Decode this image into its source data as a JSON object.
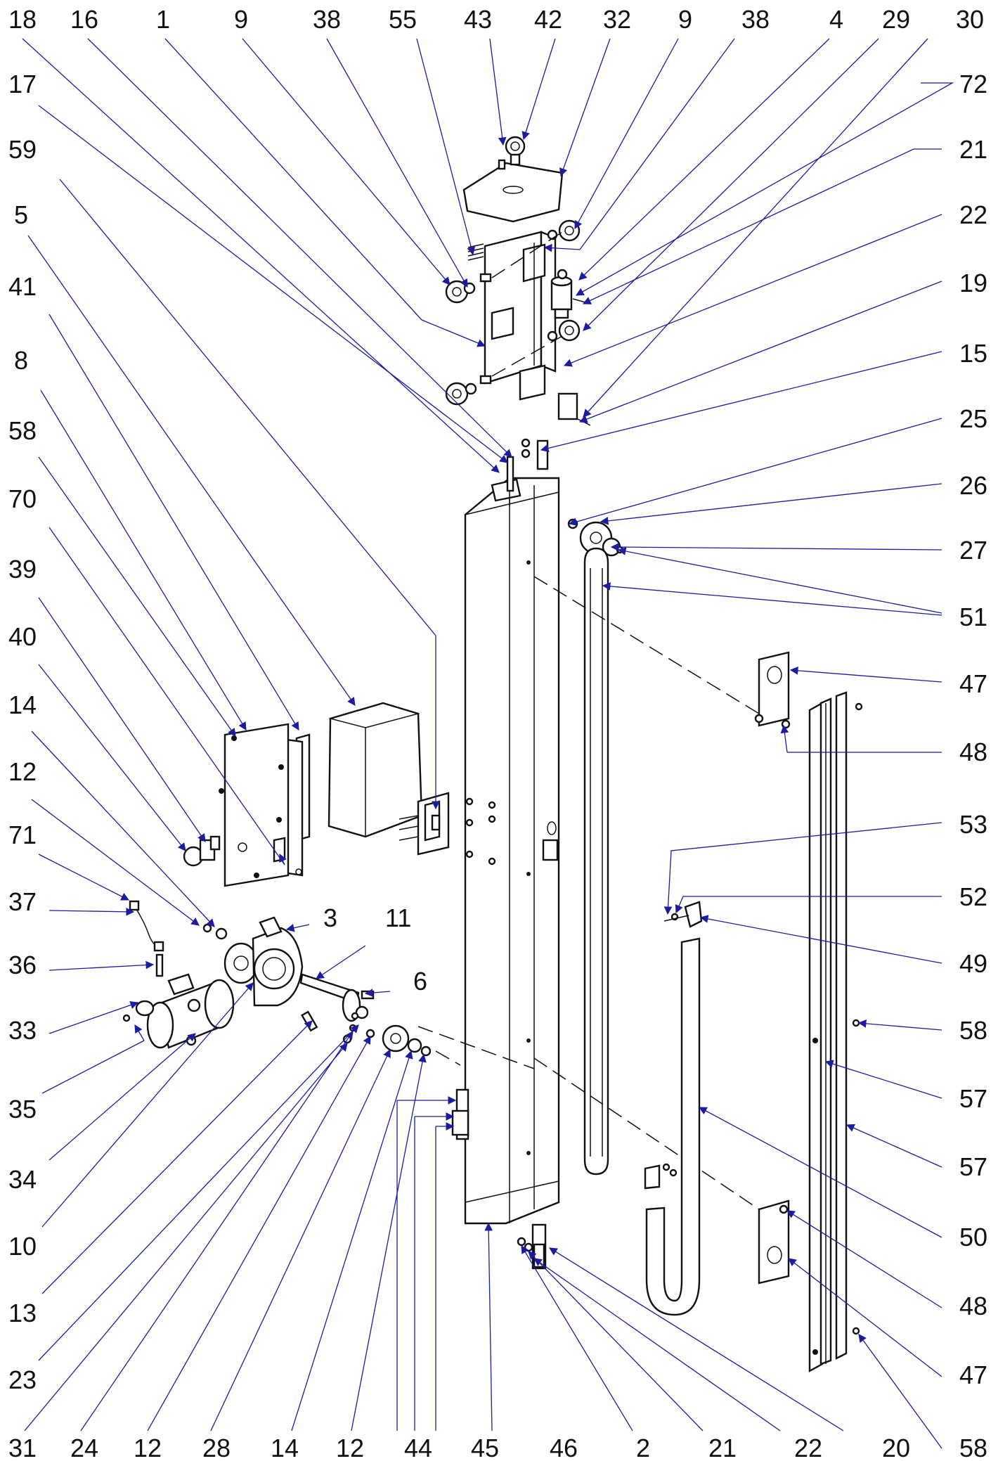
{
  "colors": {
    "leader": "#1c1c9e",
    "ink": "#111111",
    "background": "#ffffff"
  },
  "callouts": {
    "top": [
      "18",
      "16",
      "1",
      "9",
      "38",
      "55",
      "43",
      "42",
      "32",
      "9",
      "38",
      "4",
      "29",
      "30"
    ],
    "left": [
      "17",
      "59",
      "5",
      "41",
      "8",
      "58",
      "70",
      "39",
      "40",
      "14",
      "12",
      "71",
      "37",
      "36",
      "33",
      "35",
      "34",
      "10",
      "13",
      "23"
    ],
    "right": [
      "72",
      "21",
      "22",
      "19",
      "15",
      "25",
      "26",
      "27",
      "51",
      "47",
      "48",
      "53",
      "52",
      "49",
      "58",
      "57",
      "57",
      "50",
      "48",
      "47",
      "58"
    ],
    "bottom": [
      "31",
      "24",
      "12",
      "28",
      "14",
      "12",
      "44",
      "45",
      "46",
      "2",
      "21",
      "22",
      "20"
    ],
    "inner": [
      "3",
      "11",
      "6"
    ]
  }
}
